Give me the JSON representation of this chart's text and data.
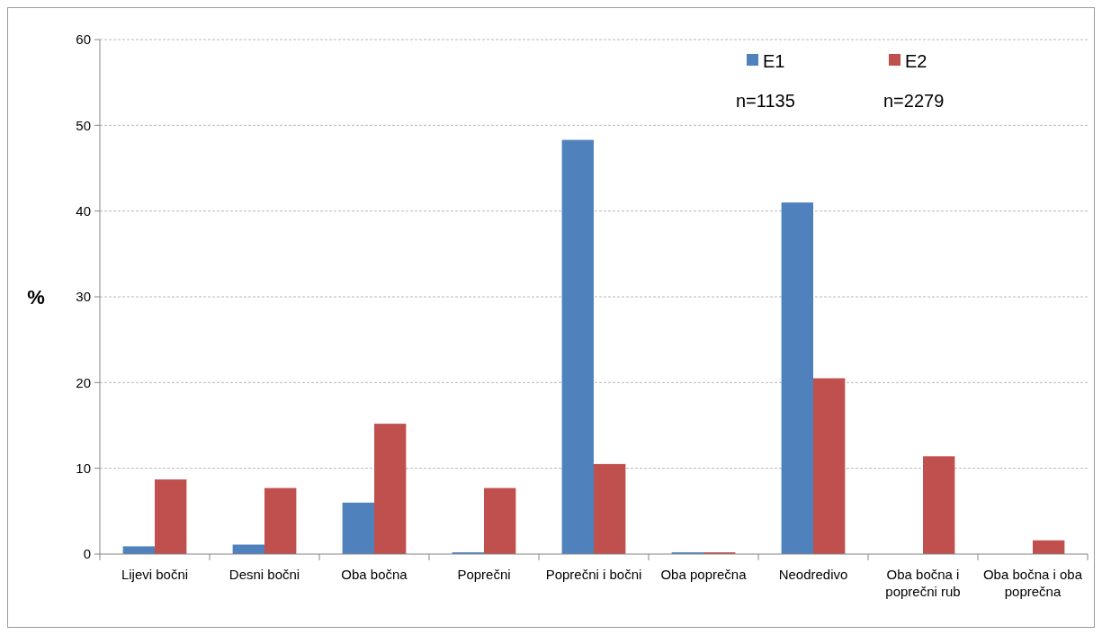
{
  "chart_data": {
    "type": "bar",
    "ylabel": "%",
    "categories": [
      "Lijevi bočni",
      "Desni bočni",
      "Oba bočna",
      "Poprečni",
      "Poprečni i bočni",
      "Oba poprečna",
      "Neodredivo",
      "Oba bočna i poprečni rub",
      "Oba bočna i oba poprečna"
    ],
    "series": [
      {
        "name": "E1",
        "color": "#4f81bd",
        "values": [
          0.9,
          1.1,
          6.0,
          0.2,
          48.3,
          0.2,
          41.0,
          0,
          0
        ]
      },
      {
        "name": "E2",
        "color": "#c0504d",
        "values": [
          8.7,
          7.7,
          15.2,
          7.7,
          10.5,
          0.2,
          20.5,
          11.4,
          1.6
        ]
      }
    ],
    "ylim": [
      0,
      60
    ],
    "yticks": [
      0,
      10,
      20,
      30,
      40,
      50,
      60
    ],
    "grid": "y",
    "legend": "top right",
    "annotations": [
      "n=1135",
      "n=2279"
    ]
  }
}
